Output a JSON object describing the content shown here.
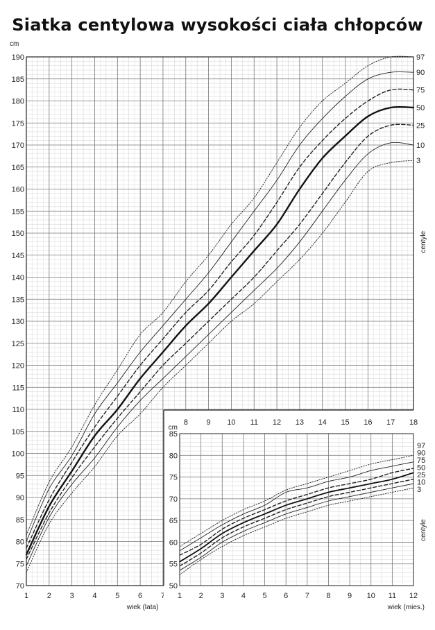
{
  "page": {
    "title": "Siatka centylowa wysokości ciała chłopców"
  },
  "chart_data": [
    {
      "type": "line",
      "ylabel": "cm",
      "xlabel": "wiek (lata)",
      "right_label": "centyle",
      "xlim": [
        1,
        18
      ],
      "ylim": [
        70,
        190
      ],
      "grid": true,
      "x_ticks_bottom": [
        1,
        2,
        3,
        4,
        5,
        6,
        7
      ],
      "x_ticks_top": [
        8,
        9,
        10,
        11,
        12,
        13,
        14,
        15,
        16,
        17,
        18
      ],
      "y_ticks": [
        70,
        75,
        80,
        85,
        90,
        95,
        100,
        105,
        110,
        115,
        120,
        125,
        130,
        135,
        140,
        145,
        150,
        155,
        160,
        165,
        170,
        175,
        180,
        185,
        190
      ],
      "x": [
        1,
        2,
        3,
        4,
        5,
        6,
        7,
        8,
        9,
        10,
        11,
        12,
        13,
        14,
        15,
        16,
        17,
        18
      ],
      "series": [
        {
          "name": "3",
          "style": "dotted",
          "values": [
            73,
            84,
            91,
            97,
            104,
            109,
            115,
            120,
            125,
            130,
            134,
            139,
            144,
            150,
            157,
            164,
            166,
            166.5
          ]
        },
        {
          "name": "10",
          "style": "solid",
          "values": [
            74.5,
            85.5,
            93,
            99,
            106,
            112,
            117,
            122,
            127,
            132,
            137,
            142,
            148,
            155,
            162,
            168,
            170.5,
            170
          ]
        },
        {
          "name": "25",
          "style": "dashed",
          "values": [
            76,
            86.5,
            94.5,
            101.5,
            108,
            114,
            120,
            125,
            130,
            135,
            140,
            146,
            152,
            159,
            166,
            172,
            174.5,
            174.5
          ]
        },
        {
          "name": "50",
          "style": "bold",
          "values": [
            77,
            88,
            96,
            104,
            110,
            117,
            123,
            129,
            134,
            140,
            146,
            152,
            160,
            167,
            172,
            176.5,
            178.5,
            178.5
          ]
        },
        {
          "name": "75",
          "style": "dashed",
          "values": [
            78.5,
            89.5,
            98,
            106,
            113,
            120,
            126,
            132,
            137,
            143.5,
            149.5,
            157,
            165,
            171,
            176,
            180,
            182.5,
            182.5
          ]
        },
        {
          "name": "90",
          "style": "solid",
          "values": [
            80,
            92,
            99.5,
            109,
            116,
            123,
            129,
            135,
            141,
            148,
            155,
            162,
            170,
            176,
            181,
            185,
            186.5,
            186.5
          ]
        },
        {
          "name": "97",
          "style": "dotted",
          "values": [
            81.5,
            93.5,
            101.5,
            111,
            119,
            127,
            132,
            139,
            145,
            152,
            158,
            166,
            174,
            180,
            184,
            188,
            190,
            190
          ]
        }
      ]
    },
    {
      "type": "line",
      "ylabel": "cm",
      "xlabel": "wiek (mies.)",
      "right_label": "centyle",
      "xlim": [
        1,
        12
      ],
      "ylim": [
        50,
        85
      ],
      "grid": true,
      "x_ticks": [
        1,
        2,
        3,
        4,
        5,
        6,
        7,
        8,
        9,
        10,
        11,
        12
      ],
      "y_ticks": [
        50,
        55,
        60,
        65,
        70,
        75,
        80,
        85
      ],
      "x": [
        1,
        2,
        3,
        4,
        5,
        6,
        7,
        8,
        9,
        10,
        11,
        12
      ],
      "series": [
        {
          "name": "3",
          "style": "dotted",
          "values": [
            52.5,
            56,
            59,
            61.5,
            63.5,
            65.5,
            67,
            68.5,
            69.5,
            70.5,
            71.5,
            72.5
          ]
        },
        {
          "name": "10",
          "style": "solid",
          "values": [
            53.5,
            56.5,
            60,
            62.5,
            64.5,
            66.5,
            68,
            69.5,
            70.5,
            71.5,
            72.5,
            73.5
          ]
        },
        {
          "name": "25",
          "style": "dashed",
          "values": [
            54.5,
            57.5,
            61,
            63.5,
            65.5,
            67.5,
            69,
            70.5,
            71.5,
            72.5,
            73.5,
            74.5
          ]
        },
        {
          "name": "50",
          "style": "bold",
          "values": [
            55.5,
            58.5,
            62,
            64.5,
            66.5,
            68.5,
            70,
            71.5,
            72.5,
            73.5,
            74.5,
            76
          ]
        },
        {
          "name": "75",
          "style": "dashed",
          "values": [
            57,
            59.5,
            63,
            65.5,
            67.5,
            69.5,
            71,
            72.5,
            73.5,
            74.5,
            76,
            77
          ]
        },
        {
          "name": "90",
          "style": "solid",
          "values": [
            58,
            61,
            64,
            66.5,
            68.5,
            71.5,
            72.5,
            74,
            75,
            76.5,
            77.5,
            78.5
          ]
        },
        {
          "name": "97",
          "style": "dotted",
          "values": [
            59,
            62,
            65,
            67.5,
            69.5,
            72,
            73.5,
            75,
            76.5,
            78,
            79,
            80
          ]
        }
      ]
    }
  ]
}
